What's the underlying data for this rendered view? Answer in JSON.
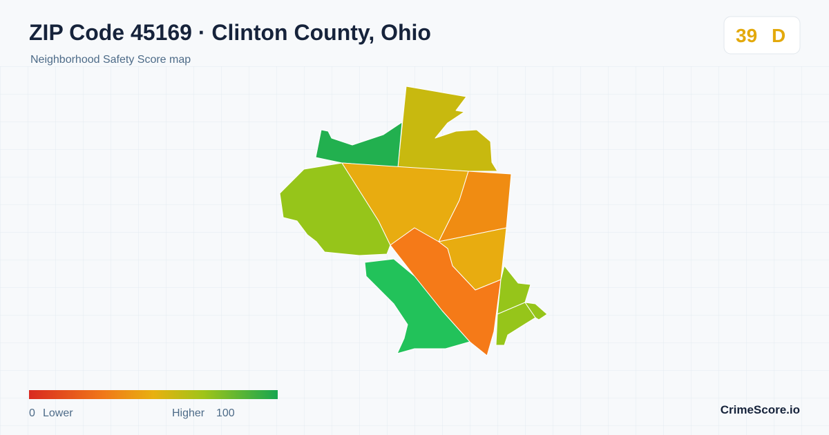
{
  "header": {
    "title": "ZIP Code 45169 · Clinton County, Ohio",
    "subtitle": "Neighborhood Safety Score map"
  },
  "score": {
    "value": 39,
    "grade": "D"
  },
  "legend": {
    "min": 0,
    "low_label": "Lower",
    "high_label": "Higher",
    "max": 100
  },
  "brand": "CrimeScore.io"
}
